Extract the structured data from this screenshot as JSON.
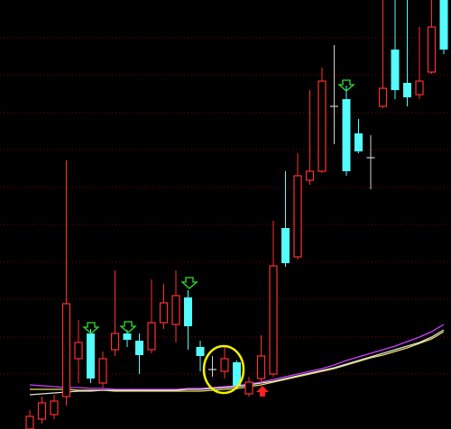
{
  "chart_data": {
    "type": "candlestick",
    "categories": [
      null,
      null,
      null,
      null,
      null,
      null,
      null,
      null,
      null,
      null,
      null,
      null,
      null,
      null,
      null,
      null,
      null,
      null,
      null,
      null,
      null,
      null,
      null,
      null,
      null,
      null,
      null,
      null,
      null,
      null,
      null,
      null,
      null,
      null,
      null
    ],
    "open": [
      0,
      11,
      16,
      36,
      78,
      106,
      51,
      88,
      106,
      98,
      88,
      118,
      116,
      146,
      91,
      66,
      64,
      74,
      39,
      56,
      61,
      223,
      191,
      276,
      286,
      358,
      366,
      328,
      301,
      358,
      421,
      384,
      371,
      396,
      476
    ],
    "high": [
      21,
      36,
      38,
      298,
      121,
      111,
      86,
      176,
      110,
      106,
      166,
      161,
      176,
      154,
      98,
      81,
      91,
      76,
      58,
      104,
      231,
      286,
      306,
      376,
      401,
      426,
      381,
      344,
      326,
      476,
      476,
      476,
      446,
      476,
      476
    ],
    "low": [
      0,
      6,
      11,
      26,
      51,
      51,
      46,
      81,
      91,
      61,
      84,
      111,
      96,
      88,
      64,
      58,
      56,
      44,
      36,
      51,
      58,
      180,
      188,
      271,
      284,
      316,
      281,
      306,
      266,
      356,
      366,
      358,
      366,
      394,
      416
    ],
    "close": [
      14,
      29,
      31,
      139,
      96,
      56,
      78,
      106,
      99,
      82,
      118,
      140,
      148,
      114,
      81,
      66,
      78,
      48,
      52,
      81,
      181,
      184,
      281,
      286,
      386,
      358,
      286,
      308,
      301,
      378,
      376,
      368,
      386,
      446,
      421
    ],
    "up_color": "#ff3030",
    "down_color": "#54fcfc",
    "flat_color": "#d0d0d0",
    "series": [
      {
        "color": "#d040ff",
        "values": [
          49,
          48,
          47,
          46,
          46,
          45,
          45,
          44,
          44,
          44,
          44,
          44,
          44,
          45,
          45,
          46,
          47,
          48,
          50,
          52,
          55,
          58,
          61,
          64,
          67,
          71,
          76,
          80,
          84,
          88,
          92,
          97,
          102,
          108,
          116
        ]
      },
      {
        "color": "#e8e060",
        "values": [
          44,
          44,
          44,
          44,
          43,
          43,
          43,
          42,
          42,
          42,
          42,
          42,
          42,
          42,
          42,
          43,
          44,
          45,
          47,
          49,
          52,
          55,
          58,
          61,
          64,
          67,
          71,
          75,
          79,
          82,
          86,
          90,
          95,
          100,
          108
        ]
      },
      {
        "color": "#e0e0e0",
        "values": [
          38,
          39,
          40,
          41,
          42,
          42,
          43,
          43,
          43,
          43,
          43,
          43,
          43,
          44,
          44,
          45,
          46,
          47,
          49,
          51,
          53,
          56,
          59,
          62,
          65,
          68,
          72,
          76,
          80,
          84,
          88,
          92,
          96,
          102,
          110
        ]
      }
    ],
    "ylim": [
      0,
      476
    ],
    "yticks": [
      61,
      102,
      144,
      185,
      227,
      268,
      310,
      351,
      393,
      434
    ],
    "grid": true
  }
}
